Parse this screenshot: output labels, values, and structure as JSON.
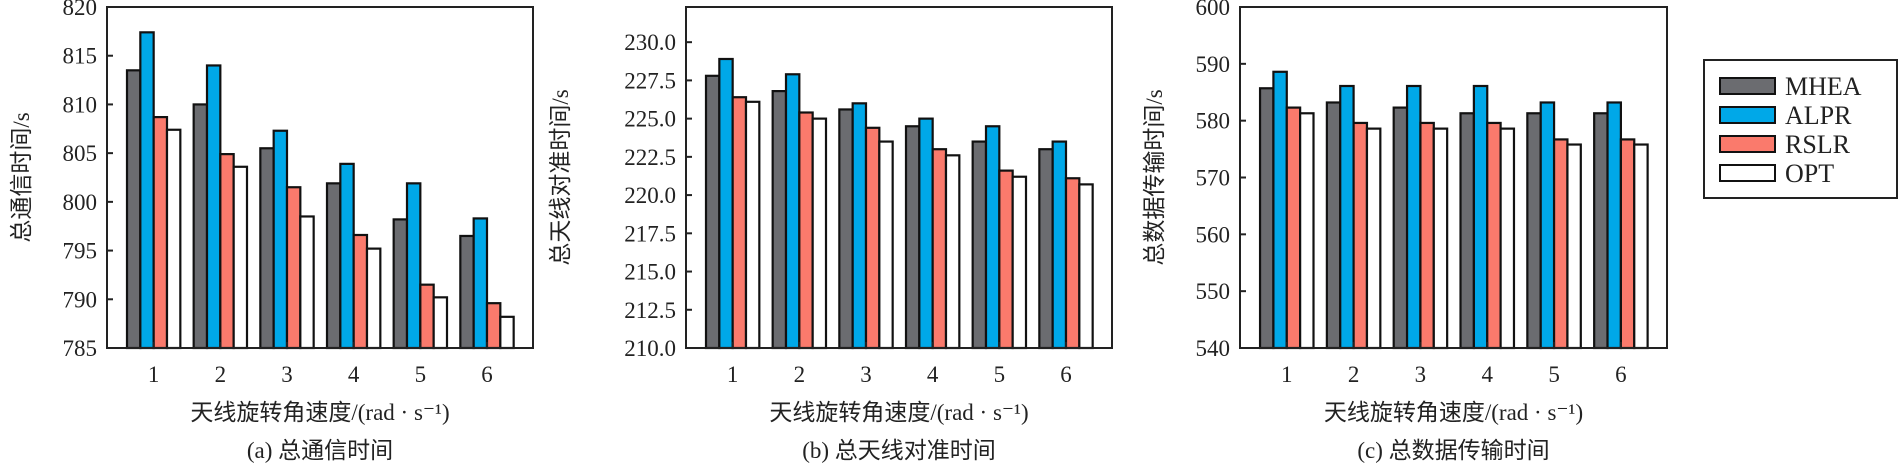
{
  "chart_data": [
    {
      "type": "bar",
      "caption": "(a) 总通信时间",
      "xlabel": "天线旋转角速度/(rad · s⁻¹)",
      "ylabel": "总通信时间/s",
      "categories": [
        "1",
        "2",
        "3",
        "4",
        "5",
        "6"
      ],
      "ylim": [
        785,
        820
      ],
      "yticks": [
        "785",
        "790",
        "795",
        "800",
        "805",
        "810",
        "815",
        "820"
      ],
      "ytick_values": [
        785,
        790,
        795,
        800,
        805,
        810,
        815,
        820
      ],
      "series": [
        {
          "name": "MHEA",
          "values": [
            813.5,
            810.0,
            805.5,
            801.9,
            798.2,
            796.5
          ]
        },
        {
          "name": "ALPR",
          "values": [
            817.4,
            814.0,
            807.3,
            803.9,
            801.9,
            798.3
          ]
        },
        {
          "name": "RSLR",
          "values": [
            808.7,
            804.9,
            801.5,
            796.6,
            791.5,
            789.6
          ]
        },
        {
          "name": "OPT",
          "values": [
            807.4,
            803.6,
            798.5,
            795.2,
            790.2,
            788.2
          ]
        }
      ]
    },
    {
      "type": "bar",
      "caption": "(b) 总天线对准时间",
      "xlabel": "天线旋转角速度/(rad · s⁻¹)",
      "ylabel": "总天线对准时间/s",
      "categories": [
        "1",
        "2",
        "3",
        "4",
        "5",
        "6"
      ],
      "ylim": [
        210,
        232.3
      ],
      "yticks": [
        "210.0",
        "212.5",
        "215.0",
        "217.5",
        "220.0",
        "222.5",
        "225.0",
        "227.5",
        "230.0"
      ],
      "ytick_values": [
        210,
        212.5,
        215,
        217.5,
        220,
        222.5,
        225,
        227.5,
        230
      ],
      "series": [
        {
          "name": "MHEA",
          "values": [
            227.8,
            226.8,
            225.6,
            224.5,
            223.5,
            223.0
          ]
        },
        {
          "name": "ALPR",
          "values": [
            228.9,
            227.9,
            226.0,
            225.0,
            224.5,
            223.5
          ]
        },
        {
          "name": "RSLR",
          "values": [
            226.4,
            225.4,
            224.4,
            223.0,
            221.6,
            221.1
          ]
        },
        {
          "name": "OPT",
          "values": [
            226.1,
            225.0,
            223.5,
            222.6,
            221.2,
            220.7
          ]
        }
      ]
    },
    {
      "type": "bar",
      "caption": "(c) 总数据传输时间",
      "xlabel": "天线旋转角速度/(rad · s⁻¹)",
      "ylabel": "总数据传输时间/s",
      "categories": [
        "1",
        "2",
        "3",
        "4",
        "5",
        "6"
      ],
      "ylim": [
        540,
        600
      ],
      "yticks": [
        "540",
        "550",
        "560",
        "570",
        "580",
        "590",
        "600"
      ],
      "ytick_values": [
        540,
        550,
        560,
        570,
        580,
        590,
        600
      ],
      "series": [
        {
          "name": "MHEA",
          "values": [
            585.7,
            583.2,
            582.3,
            581.3,
            581.3,
            581.3
          ]
        },
        {
          "name": "ALPR",
          "values": [
            588.6,
            586.1,
            586.1,
            586.1,
            583.2,
            583.2
          ]
        },
        {
          "name": "RSLR",
          "values": [
            582.3,
            579.6,
            579.6,
            579.6,
            576.7,
            576.7
          ]
        },
        {
          "name": "OPT",
          "values": [
            581.3,
            578.6,
            578.6,
            578.6,
            575.8,
            575.8
          ]
        }
      ]
    }
  ],
  "legend": {
    "placement": "right",
    "items": [
      {
        "label": "MHEA",
        "color": "#6b6c70"
      },
      {
        "label": "ALPR",
        "color": "#00a8e8"
      },
      {
        "label": "RSLR",
        "color": "#fa7a6c"
      },
      {
        "label": "OPT",
        "color": "#ffffff"
      }
    ]
  }
}
